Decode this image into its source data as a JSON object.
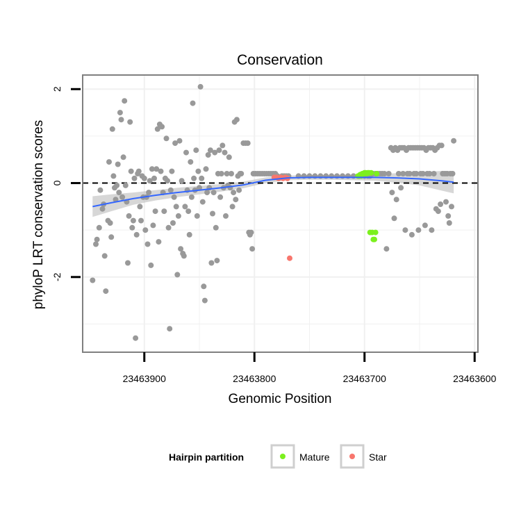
{
  "chart_data": {
    "type": "scatter",
    "title": "Conservation",
    "xlabel": "Genomic Position",
    "ylabel": "phyloP LRT conservation scores",
    "x_reversed": true,
    "xlim": [
      23463956,
      23463597
    ],
    "ylim": [
      -3.6,
      2.3
    ],
    "x_ticks": [
      23463900,
      23463800,
      23463700,
      23463600
    ],
    "x_tick_labels": [
      "23463900",
      "23463800",
      "23463700",
      "23463600"
    ],
    "y_ticks": [
      -2,
      0,
      2
    ],
    "y_tick_labels": [
      "-2",
      "0",
      "2"
    ],
    "grid": true,
    "reference_line": {
      "y": 0,
      "style": "dashed"
    },
    "colors": {
      "other": "#999999",
      "Mature": "#7CF01E",
      "Star": "#F8766D",
      "smooth": "#3366FF",
      "ribbon": "#BDBDBD",
      "grid": "#F0F0F0"
    },
    "legend": {
      "title": "Hairpin partition",
      "position": "bottom",
      "entries": [
        {
          "label": "Mature",
          "color": "#7CF01E"
        },
        {
          "label": "Star",
          "color": "#F8766D"
        }
      ]
    },
    "series": [
      {
        "group": "other",
        "color": "#999999",
        "points": [
          [
            23463947,
            -2.07
          ],
          [
            23463944,
            -1.3
          ],
          [
            23463943,
            -1.2
          ],
          [
            23463941,
            -0.95
          ],
          [
            23463940,
            -0.15
          ],
          [
            23463938,
            -0.55
          ],
          [
            23463937,
            -0.45
          ],
          [
            23463936,
            -1.55
          ],
          [
            23463935,
            -2.3
          ],
          [
            23463933,
            -0.8
          ],
          [
            23463932,
            0.45
          ],
          [
            23463931,
            -0.85
          ],
          [
            23463930,
            -1.15
          ],
          [
            23463929,
            1.15
          ],
          [
            23463928,
            0.15
          ],
          [
            23463927,
            -0.1
          ],
          [
            23463926,
            -0.35
          ],
          [
            23463925,
            -0.05
          ],
          [
            23463924,
            0.4
          ],
          [
            23463923,
            -0.2
          ],
          [
            23463922,
            1.5
          ],
          [
            23463921,
            1.35
          ],
          [
            23463920,
            -0.3
          ],
          [
            23463919,
            0.55
          ],
          [
            23463918,
            1.75
          ],
          [
            23463917,
            -0.05
          ],
          [
            23463916,
            -0.4
          ],
          [
            23463915,
            -1.7
          ],
          [
            23463914,
            -0.7
          ],
          [
            23463913,
            1.3
          ],
          [
            23463912,
            0.25
          ],
          [
            23463911,
            -0.95
          ],
          [
            23463910,
            -0.8
          ],
          [
            23463909,
            0.1
          ],
          [
            23463908,
            -3.3
          ],
          [
            23463907,
            -1.1
          ],
          [
            23463906,
            0.2
          ],
          [
            23463905,
            0.25
          ],
          [
            23463904,
            -0.5
          ],
          [
            23463903,
            -0.8
          ],
          [
            23463902,
            0.15
          ],
          [
            23463901,
            -0.3
          ],
          [
            23463900,
            0.1
          ],
          [
            23463899,
            -1.0
          ],
          [
            23463898,
            -0.3
          ],
          [
            23463897,
            -1.3
          ],
          [
            23463896,
            -0.2
          ],
          [
            23463895,
            0.05
          ],
          [
            23463894,
            -1.75
          ],
          [
            23463893,
            0.3
          ],
          [
            23463892,
            -0.9
          ],
          [
            23463891,
            0.1
          ],
          [
            23463890,
            -0.6
          ],
          [
            23463889,
            0.3
          ],
          [
            23463888,
            1.15
          ],
          [
            23463887,
            -1.25
          ],
          [
            23463886,
            1.25
          ],
          [
            23463885,
            0.25
          ],
          [
            23463884,
            1.2
          ],
          [
            23463883,
            -0.2
          ],
          [
            23463882,
            -0.6
          ],
          [
            23463881,
            0.1
          ],
          [
            23463880,
            0.95
          ],
          [
            23463879,
            0.05
          ],
          [
            23463878,
            -0.95
          ],
          [
            23463877,
            -3.1
          ],
          [
            23463876,
            -0.15
          ],
          [
            23463875,
            0.25
          ],
          [
            23463874,
            -0.85
          ],
          [
            23463873,
            -0.3
          ],
          [
            23463872,
            0.85
          ],
          [
            23463871,
            -0.5
          ],
          [
            23463870,
            -1.95
          ],
          [
            23463869,
            -0.7
          ],
          [
            23463868,
            0.9
          ],
          [
            23463867,
            -1.4
          ],
          [
            23463866,
            0.05
          ],
          [
            23463865,
            -1.5
          ],
          [
            23463864,
            -1.55
          ],
          [
            23463863,
            -0.5
          ],
          [
            23463862,
            0.65
          ],
          [
            23463861,
            -0.15
          ],
          [
            23463860,
            -0.6
          ],
          [
            23463859,
            -1.1
          ],
          [
            23463858,
            0.45
          ],
          [
            23463857,
            -0.3
          ],
          [
            23463856,
            1.7
          ],
          [
            23463855,
            0.1
          ],
          [
            23463854,
            -0.15
          ],
          [
            23463853,
            0.7
          ],
          [
            23463852,
            -0.7
          ],
          [
            23463851,
            0.25
          ],
          [
            23463850,
            -0.1
          ],
          [
            23463849,
            2.05
          ],
          [
            23463848,
            0.1
          ],
          [
            23463847,
            -0.4
          ],
          [
            23463846,
            -2.2
          ],
          [
            23463845,
            -2.5
          ],
          [
            23463844,
            0.3
          ],
          [
            23463843,
            -0.2
          ],
          [
            23463842,
            0.6
          ],
          [
            23463841,
            -0.1
          ],
          [
            23463840,
            0.7
          ],
          [
            23463839,
            -1.7
          ],
          [
            23463838,
            -0.65
          ],
          [
            23463837,
            -0.2
          ],
          [
            23463836,
            0.65
          ],
          [
            23463835,
            -0.95
          ],
          [
            23463834,
            -1.65
          ],
          [
            23463833,
            0.2
          ],
          [
            23463832,
            0.7
          ],
          [
            23463831,
            -0.3
          ],
          [
            23463830,
            0.2
          ],
          [
            23463829,
            0.8
          ],
          [
            23463828,
            -0.1
          ],
          [
            23463827,
            0.65
          ],
          [
            23463826,
            -0.7
          ],
          [
            23463825,
            0.2
          ],
          [
            23463824,
            -0.05
          ],
          [
            23463823,
            0.55
          ],
          [
            23463822,
            -0.1
          ],
          [
            23463821,
            0.2
          ],
          [
            23463820,
            -0.5
          ],
          [
            23463819,
            -0.2
          ],
          [
            23463818,
            1.3
          ],
          [
            23463817,
            -0.35
          ],
          [
            23463816,
            1.35
          ],
          [
            23463815,
            0.15
          ],
          [
            23463814,
            -0.15
          ],
          [
            23463813,
            0.2
          ],
          [
            23463812,
            0.2
          ],
          [
            23463810,
            0.85
          ],
          [
            23463808,
            0.85
          ],
          [
            23463806,
            0.85
          ],
          [
            23463805,
            -1.05
          ],
          [
            23463804,
            -1.1
          ],
          [
            23463803,
            -1.05
          ],
          [
            23463802,
            -1.4
          ],
          [
            23463801,
            0.2
          ],
          [
            23463799,
            0.2
          ],
          [
            23463797,
            0.2
          ],
          [
            23463795,
            0.2
          ],
          [
            23463793,
            0.2
          ],
          [
            23463791,
            0.2
          ],
          [
            23463789,
            0.2
          ],
          [
            23463787,
            0.2
          ],
          [
            23463785,
            0.2
          ],
          [
            23463783,
            0.2
          ],
          [
            23463781,
            0.2
          ],
          [
            23463779,
            0.15
          ],
          [
            23463775,
            0.15
          ],
          [
            23463773,
            0.15
          ],
          [
            23463771,
            0.15
          ],
          [
            23463769,
            0.15
          ],
          [
            23463760,
            0.15
          ],
          [
            23463755,
            0.15
          ],
          [
            23463750,
            0.15
          ],
          [
            23463745,
            0.15
          ],
          [
            23463740,
            0.15
          ],
          [
            23463735,
            0.15
          ],
          [
            23463730,
            0.15
          ],
          [
            23463725,
            0.15
          ],
          [
            23463720,
            0.15
          ],
          [
            23463715,
            0.15
          ],
          [
            23463710,
            0.15
          ],
          [
            23463705,
            0.15
          ],
          [
            23463700,
            0.15
          ],
          [
            23463697,
            0.15
          ],
          [
            23463695,
            0.15
          ],
          [
            23463692,
            0.2
          ],
          [
            23463690,
            0.2
          ],
          [
            23463688,
            0.2
          ],
          [
            23463686,
            0.2
          ],
          [
            23463684,
            0.2
          ],
          [
            23463682,
            0.2
          ],
          [
            23463680,
            -1.4
          ],
          [
            23463678,
            0.2
          ],
          [
            23463676,
            0.75
          ],
          [
            23463675,
            -0.2
          ],
          [
            23463674,
            0.7
          ],
          [
            23463673,
            -0.75
          ],
          [
            23463672,
            0.75
          ],
          [
            23463671,
            -0.35
          ],
          [
            23463670,
            0.7
          ],
          [
            23463669,
            0.2
          ],
          [
            23463668,
            0.75
          ],
          [
            23463667,
            -0.1
          ],
          [
            23463666,
            0.75
          ],
          [
            23463665,
            0.2
          ],
          [
            23463664,
            0.75
          ],
          [
            23463663,
            -1.0
          ],
          [
            23463662,
            0.7
          ],
          [
            23463661,
            0.2
          ],
          [
            23463660,
            0.75
          ],
          [
            23463659,
            0.2
          ],
          [
            23463658,
            0.75
          ],
          [
            23463657,
            -1.1
          ],
          [
            23463656,
            0.75
          ],
          [
            23463655,
            0.2
          ],
          [
            23463654,
            0.75
          ],
          [
            23463653,
            0.2
          ],
          [
            23463652,
            0.75
          ],
          [
            23463651,
            -1.0
          ],
          [
            23463650,
            0.75
          ],
          [
            23463649,
            0.2
          ],
          [
            23463648,
            0.75
          ],
          [
            23463647,
            0.2
          ],
          [
            23463646,
            0.75
          ],
          [
            23463645,
            -0.9
          ],
          [
            23463644,
            0.7
          ],
          [
            23463643,
            0.2
          ],
          [
            23463642,
            0.75
          ],
          [
            23463641,
            0.2
          ],
          [
            23463640,
            0.75
          ],
          [
            23463639,
            -1.0
          ],
          [
            23463638,
            0.75
          ],
          [
            23463637,
            0.2
          ],
          [
            23463636,
            0.7
          ],
          [
            23463635,
            -0.55
          ],
          [
            23463634,
            0.75
          ],
          [
            23463633,
            -0.6
          ],
          [
            23463632,
            0.8
          ],
          [
            23463631,
            -0.45
          ],
          [
            23463630,
            0.8
          ],
          [
            23463629,
            0.2
          ],
          [
            23463627,
            0.2
          ],
          [
            23463626,
            -0.4
          ],
          [
            23463625,
            0.2
          ],
          [
            23463624,
            -0.7
          ],
          [
            23463623,
            -0.85
          ],
          [
            23463622,
            0.2
          ],
          [
            23463621,
            -0.5
          ],
          [
            23463620,
            0.2
          ],
          [
            23463619,
            0.9
          ]
        ]
      },
      {
        "group": "Mature",
        "color": "#7CF01E",
        "points": [
          [
            23463706,
            0.15
          ],
          [
            23463705,
            0.15
          ],
          [
            23463704,
            0.18
          ],
          [
            23463703,
            0.15
          ],
          [
            23463702,
            0.2
          ],
          [
            23463701,
            0.2
          ],
          [
            23463700,
            0.22
          ],
          [
            23463699,
            0.22
          ],
          [
            23463698,
            0.2
          ],
          [
            23463697,
            0.22
          ],
          [
            23463696,
            0.22
          ],
          [
            23463695,
            -1.05
          ],
          [
            23463694,
            0.22
          ],
          [
            23463693,
            -1.05
          ],
          [
            23463692,
            -1.2
          ],
          [
            23463691,
            -1.2
          ],
          [
            23463690,
            -1.05
          ],
          [
            23463689,
            0.2
          ]
        ]
      },
      {
        "group": "Star",
        "color": "#F8766D",
        "points": [
          [
            23463782,
            0.12
          ],
          [
            23463780,
            0.12
          ],
          [
            23463778,
            0.1
          ],
          [
            23463776,
            0.12
          ],
          [
            23463774,
            0.1
          ],
          [
            23463772,
            0.12
          ],
          [
            23463770,
            0.1
          ],
          [
            23463768,
            -1.6
          ]
        ]
      }
    ],
    "smooth": {
      "x": [
        23463947,
        23463930,
        23463910,
        23463890,
        23463870,
        23463850,
        23463830,
        23463810,
        23463790,
        23463770,
        23463750,
        23463730,
        23463710,
        23463690,
        23463670,
        23463650,
        23463630,
        23463619
      ],
      "y": [
        -0.5,
        -0.42,
        -0.33,
        -0.26,
        -0.2,
        -0.15,
        -0.1,
        -0.04,
        0.06,
        0.11,
        0.12,
        0.12,
        0.12,
        0.12,
        0.11,
        0.09,
        0.05,
        0.02
      ],
      "ci_low": [
        -0.72,
        -0.6,
        -0.46,
        -0.37,
        -0.3,
        -0.24,
        -0.18,
        -0.11,
        0.0,
        0.06,
        0.07,
        0.07,
        0.06,
        0.05,
        0.01,
        -0.05,
        -0.16,
        -0.22
      ],
      "ci_high": [
        -0.28,
        -0.24,
        -0.2,
        -0.15,
        -0.1,
        -0.06,
        -0.02,
        0.03,
        0.12,
        0.16,
        0.17,
        0.17,
        0.18,
        0.19,
        0.21,
        0.23,
        0.26,
        0.26
      ]
    }
  }
}
